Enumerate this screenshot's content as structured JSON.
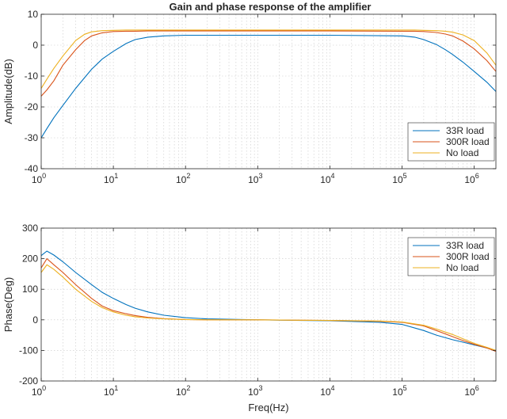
{
  "figure_title": "Gain and phase response of the amplifier",
  "chart_data": [
    {
      "type": "line",
      "title": "Gain and phase response of the amplifier",
      "xlabel": "",
      "ylabel": "Amplitude(dB)",
      "xscale": "log",
      "xlim": [
        1,
        2000000
      ],
      "ylim": [
        -40,
        10
      ],
      "yticks": [
        "-40",
        "-30",
        "-20",
        "-10",
        "0",
        "10"
      ],
      "xticks": [
        {
          "base": "10",
          "exp": "0"
        },
        {
          "base": "10",
          "exp": "1"
        },
        {
          "base": "10",
          "exp": "2"
        },
        {
          "base": "10",
          "exp": "3"
        },
        {
          "base": "10",
          "exp": "4"
        },
        {
          "base": "10",
          "exp": "5"
        },
        {
          "base": "10",
          "exp": "6"
        }
      ],
      "grid": true,
      "legend_position": "lower-right",
      "x": [
        1,
        1.2,
        1.5,
        2,
        3,
        4,
        5,
        7,
        10,
        15,
        20,
        30,
        50,
        100,
        1000,
        10000,
        100000,
        150000,
        200000,
        300000,
        400000,
        500000,
        700000,
        1000000,
        1500000,
        2000000
      ],
      "series": [
        {
          "name": "33R load",
          "color": "#0072bd",
          "values": [
            -30,
            -27,
            -23.5,
            -19.5,
            -14,
            -10.5,
            -7.8,
            -4.5,
            -2,
            0.5,
            1.8,
            2.6,
            3,
            3.2,
            3.2,
            3.2,
            3,
            2.6,
            1.8,
            0.2,
            -1.5,
            -3,
            -5.5,
            -8.5,
            -12,
            -15
          ]
        },
        {
          "name": "300R load",
          "color": "#d95319",
          "values": [
            -16.5,
            -14.5,
            -11.5,
            -6.5,
            -1.5,
            1.5,
            3,
            4,
            4.4,
            4.5,
            4.5,
            4.6,
            4.6,
            4.6,
            4.6,
            4.6,
            4.5,
            4.5,
            4.4,
            4.1,
            3.6,
            3,
            1.3,
            -1.2,
            -5,
            -8.5
          ]
        },
        {
          "name": "No load",
          "color": "#edb120",
          "values": [
            -14,
            -11,
            -7.5,
            -3.5,
            1.5,
            3.5,
            4.3,
            4.7,
            4.8,
            4.9,
            4.9,
            4.9,
            4.9,
            4.9,
            4.9,
            4.9,
            4.9,
            4.9,
            4.8,
            4.7,
            4.5,
            4.2,
            3.3,
            1.5,
            -2.5,
            -6.5
          ]
        }
      ]
    },
    {
      "type": "line",
      "title": "",
      "xlabel": "Freq(Hz)",
      "ylabel": "Phase(Deg)",
      "xscale": "log",
      "xlim": [
        1,
        2000000
      ],
      "ylim": [
        -200,
        300
      ],
      "yticks": [
        "-200",
        "-100",
        "0",
        "100",
        "200",
        "300"
      ],
      "xticks": [
        {
          "base": "10",
          "exp": "0"
        },
        {
          "base": "10",
          "exp": "1"
        },
        {
          "base": "10",
          "exp": "2"
        },
        {
          "base": "10",
          "exp": "3"
        },
        {
          "base": "10",
          "exp": "4"
        },
        {
          "base": "10",
          "exp": "5"
        },
        {
          "base": "10",
          "exp": "6"
        }
      ],
      "grid": true,
      "legend_position": "upper-right",
      "x": [
        1,
        1.2,
        1.5,
        2,
        3,
        5,
        7,
        10,
        15,
        20,
        30,
        50,
        100,
        200,
        1000,
        10000,
        50000,
        100000,
        200000,
        300000,
        500000,
        700000,
        1000000,
        1500000,
        2000000
      ],
      "series": [
        {
          "name": "33R load",
          "color": "#0072bd",
          "values": [
            210,
            225,
            212,
            190,
            155,
            115,
            90,
            70,
            50,
            38,
            26,
            15,
            7,
            3,
            0,
            -3,
            -8,
            -15,
            -35,
            -50,
            -65,
            -73,
            -82,
            -92,
            -100
          ]
        },
        {
          "name": "300R load",
          "color": "#d95319",
          "values": [
            170,
            200,
            180,
            155,
            115,
            70,
            45,
            30,
            20,
            14,
            8,
            4,
            1,
            0,
            0,
            -2,
            -5,
            -8,
            -20,
            -35,
            -55,
            -68,
            -80,
            -92,
            -103
          ]
        },
        {
          "name": "No load",
          "color": "#edb120",
          "values": [
            155,
            180,
            165,
            140,
            100,
            60,
            40,
            26,
            15,
            10,
            6,
            3,
            1,
            0,
            0,
            -2,
            -4,
            -7,
            -18,
            -30,
            -48,
            -62,
            -77,
            -90,
            -100
          ]
        }
      ]
    }
  ]
}
